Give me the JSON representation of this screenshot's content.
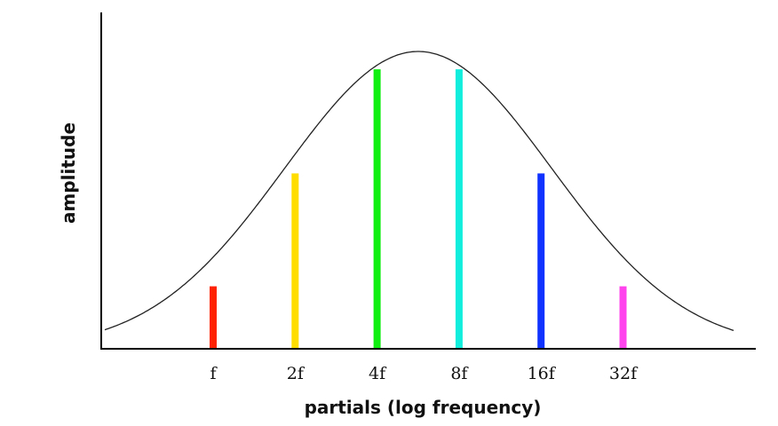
{
  "chart_data": {
    "type": "bar",
    "title": "",
    "xlabel": "partials (log frequency)",
    "ylabel": "amplitude",
    "x_scale": "log2",
    "categories": [
      "f",
      "2f",
      "4f",
      "8f",
      "16f",
      "32f"
    ],
    "harmonic_multiple": [
      1,
      2,
      4,
      8,
      16,
      32
    ],
    "values": [
      0.21,
      0.59,
      0.94,
      0.94,
      0.59,
      0.21
    ],
    "bar_colors": [
      "#ff2200",
      "#ffdd00",
      "#11ee11",
      "#11eedd",
      "#1133ff",
      "#ff44ee"
    ],
    "envelope": {
      "type": "gaussian",
      "peak_multiple": 5.66,
      "peak_value": 1.0,
      "sigma_octaves": 1.63,
      "color": "#222222"
    },
    "ylim": [
      0,
      1
    ],
    "grid": false,
    "legend": "none"
  }
}
